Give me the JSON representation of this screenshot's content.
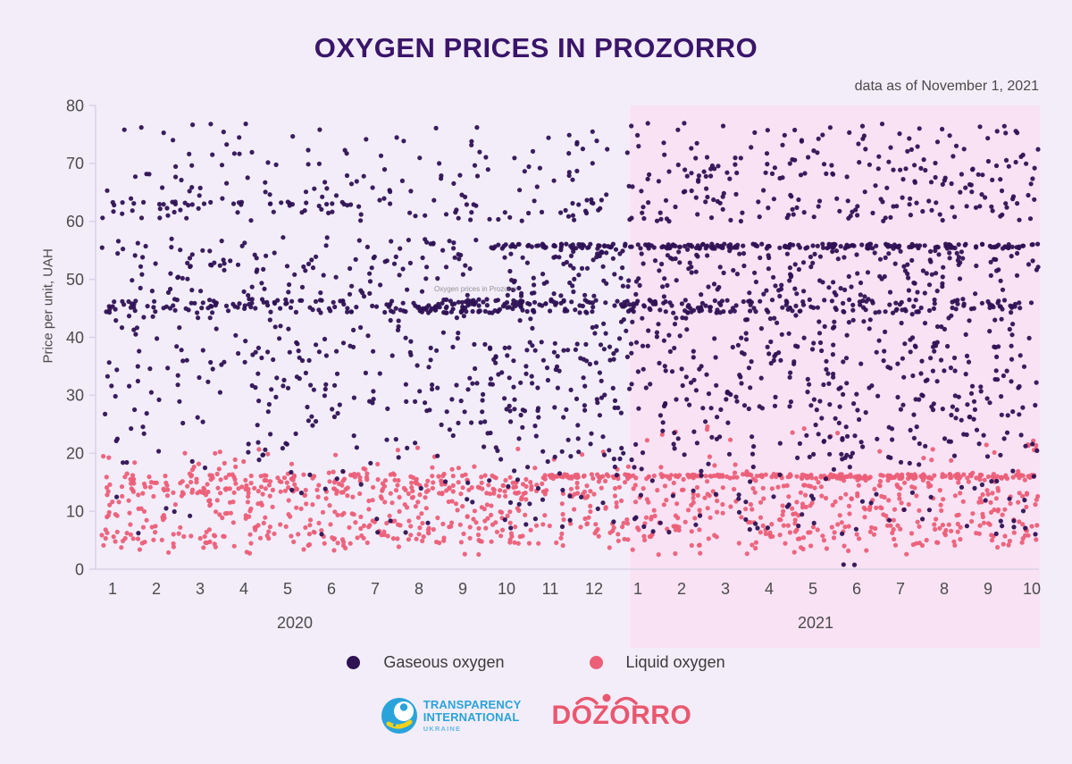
{
  "header": {
    "title": "OXYGEN PRICES IN PROZORRO",
    "subtitle": "data as of November 1, 2021"
  },
  "watermark": "Oxygen prices in Prozorro",
  "legend": [
    {
      "label": "Gaseous oxygen",
      "color": "#2e1254"
    },
    {
      "label": "Liquid oxygen",
      "color": "#ec5f78"
    }
  ],
  "footer": {
    "ti_logo": {
      "line1": "TRANSPARENCY",
      "line2": "INTERNATIONAL",
      "line3": "UKRAINE",
      "color": "#2aa3db",
      "accent": "#f7d117"
    },
    "dozorro_logo": {
      "text": "DOZORRO",
      "color": "#e9586f"
    }
  },
  "chart_data": {
    "type": "scatter",
    "title": "OXYGEN PRICES IN PROZORRO",
    "subtitle": "data as of November 1, 2021",
    "xlabel": "",
    "ylabel": "Price per unit, UAH",
    "ylim": [
      0,
      80
    ],
    "y_ticks": [
      0,
      10,
      20,
      30,
      40,
      50,
      60,
      70,
      80
    ],
    "x_axis": {
      "unit": "month index, 0 = Jan 2020 .. 21 = Oct 2021",
      "groups": [
        {
          "year": "2020",
          "months": [
            "1",
            "2",
            "3",
            "4",
            "5",
            "6",
            "7",
            "8",
            "9",
            "10",
            "11",
            "12"
          ]
        },
        {
          "year": "2021",
          "months": [
            "1",
            "2",
            "3",
            "4",
            "5",
            "6",
            "7",
            "8",
            "9",
            "10"
          ]
        }
      ]
    },
    "highlight": {
      "label": "2021 region",
      "color": "#f9e2f4",
      "from_month_index": 11.82,
      "to_month_index": 21.18
    },
    "grid": false,
    "legend_position": "bottom",
    "axis_color": "#d9d1e6",
    "tick_text_color": "#4b4b4b",
    "seed": 20211101,
    "point_radius": 2.6,
    "series": [
      {
        "name": "Liquid oxygen",
        "color": "#ec5f78",
        "opacity": 0.95,
        "bands_format": "[monthFrom, monthTo, priceFrom, priceTo, count]",
        "bands": [
          [
            9.8,
            21.15,
            15.6,
            16.4,
            260
          ],
          [
            -0.25,
            9.8,
            12.5,
            16.5,
            260
          ],
          [
            9.8,
            21.15,
            12.0,
            15.6,
            130
          ],
          [
            -0.25,
            9.8,
            8.0,
            12.5,
            120
          ],
          [
            9.8,
            21.15,
            8.0,
            12.0,
            120
          ],
          [
            -0.25,
            9.8,
            4.0,
            8.0,
            150
          ],
          [
            9.8,
            21.15,
            4.0,
            8.0,
            150
          ],
          [
            -0.25,
            21.15,
            16.5,
            21.5,
            55
          ],
          [
            11.5,
            17.0,
            22.0,
            25.0,
            10
          ],
          [
            -0.25,
            21.15,
            2.5,
            4.0,
            30
          ],
          [
            20.9,
            21.15,
            20.0,
            22.5,
            4
          ]
        ],
        "extra_points": []
      },
      {
        "name": "Gaseous oxygen",
        "color": "#2e1254",
        "opacity": 0.95,
        "bands_format": "[monthFrom, monthTo, priceFrom, priceTo, count]",
        "bands": [
          [
            -0.25,
            11.8,
            70,
            77,
            45
          ],
          [
            11.8,
            21.15,
            70,
            77,
            70
          ],
          [
            -0.25,
            11.8,
            64,
            70,
            60
          ],
          [
            11.8,
            21.15,
            64,
            70,
            95
          ],
          [
            -0.25,
            11.8,
            60,
            64,
            70
          ],
          [
            -0.25,
            5.5,
            62.6,
            63.4,
            30
          ],
          [
            11.8,
            21.15,
            60,
            64,
            80
          ],
          [
            8.6,
            21.15,
            55.3,
            56.1,
            240
          ],
          [
            -0.25,
            8.6,
            53,
            57.5,
            55
          ],
          [
            8.6,
            21.15,
            53,
            55.2,
            70
          ],
          [
            -0.25,
            8.6,
            47,
            53,
            70
          ],
          [
            8.6,
            21.15,
            47,
            53,
            150
          ],
          [
            -0.25,
            21.15,
            44.2,
            46.6,
            320
          ],
          [
            7.0,
            14.0,
            44.2,
            46.6,
            90
          ],
          [
            -0.25,
            8.6,
            36,
            44,
            70
          ],
          [
            8.6,
            21.15,
            36,
            44,
            160
          ],
          [
            -0.25,
            8.6,
            26,
            36,
            90
          ],
          [
            8.6,
            21.15,
            26,
            36,
            210
          ],
          [
            -0.25,
            8.6,
            18,
            26,
            45
          ],
          [
            8.6,
            21.15,
            18,
            26,
            110
          ],
          [
            -0.25,
            9.5,
            6,
            18,
            35
          ],
          [
            9.5,
            21.15,
            6,
            18,
            85
          ]
        ],
        "extra_points": [
          [
            16.7,
            0.8
          ],
          [
            16.95,
            0.75
          ]
        ]
      }
    ]
  }
}
